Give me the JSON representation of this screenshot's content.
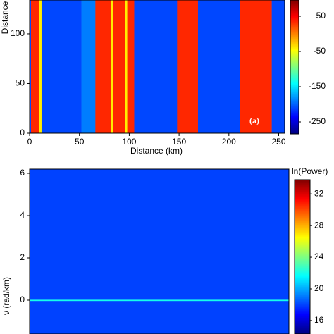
{
  "chart_data": [
    {
      "type": "heatmap-stripes",
      "y_label": "Distance",
      "x_label": "Distance (km)",
      "annotation": "(a)",
      "colormap": "jet",
      "x_edges": [
        0,
        1.4,
        9.9,
        12,
        52,
        66,
        82,
        84,
        96,
        98,
        105,
        148,
        169,
        211,
        243,
        256
      ],
      "values": [
        -210,
        34,
        -40,
        -210,
        -190,
        34,
        -40,
        34,
        -40,
        34,
        -210,
        34,
        -210,
        34,
        -210
      ],
      "xlim": [
        0,
        256
      ],
      "xticks": [
        0,
        50,
        100,
        150,
        200,
        250
      ],
      "ylim": [
        0,
        134
      ],
      "yticks": [
        0,
        50,
        100
      ],
      "clim": [
        -284,
        96
      ],
      "cticks": [
        50,
        -50,
        -150,
        -250
      ]
    },
    {
      "type": "heatmap-rows",
      "y_label": "ν (rad/km)",
      "colorbar_label": "ln(Power)",
      "colormap": "jet",
      "y_edges": [
        -1.6,
        -0.03,
        0.03,
        6.2
      ],
      "values": [
        18,
        22,
        18
      ],
      "ylim": [
        -1.6,
        6.2
      ],
      "yticks": [
        0,
        2,
        4,
        6
      ],
      "clim": [
        14.3,
        33.8
      ],
      "cticks": [
        32,
        28,
        24,
        20,
        16
      ]
    }
  ]
}
